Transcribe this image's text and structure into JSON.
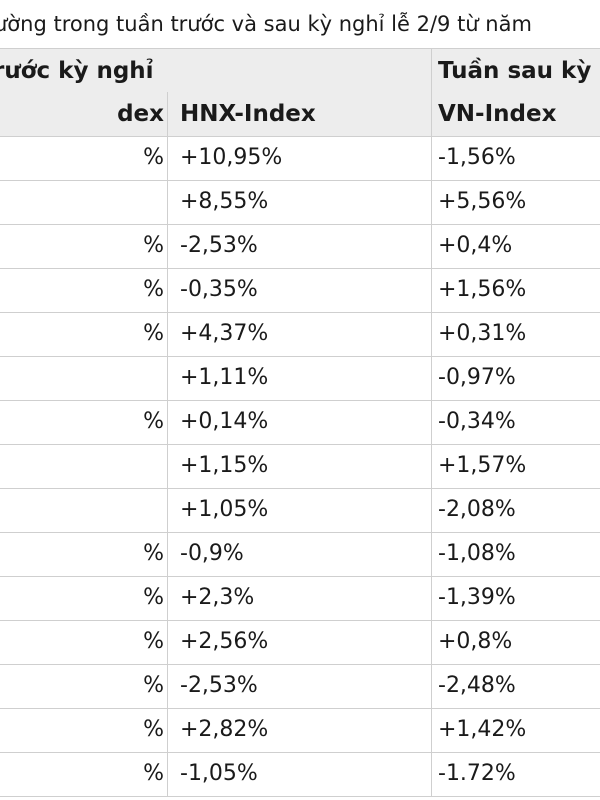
{
  "title": "ường trong tuần trước và sau kỳ nghỉ lễ 2/9 từ năm",
  "header_row_1": {
    "col1": "trước kỳ nghỉ",
    "col3": "Tuần sau kỳ"
  },
  "header_row_2": {
    "col1": "dex",
    "col2": "HNX-Index",
    "col3": "VN-Index"
  },
  "rows": [
    {
      "c1": "%",
      "c2": "+10,95%",
      "c3": "-1,56%"
    },
    {
      "c1": "",
      "c2": "+8,55%",
      "c3": "+5,56%"
    },
    {
      "c1": "%",
      "c2": "-2,53%",
      "c3": "+0,4%"
    },
    {
      "c1": "%",
      "c2": "-0,35%",
      "c3": "+1,56%"
    },
    {
      "c1": "%",
      "c2": "+4,37%",
      "c3": "+0,31%"
    },
    {
      "c1": "",
      "c2": "+1,11%",
      "c3": "-0,97%"
    },
    {
      "c1": "%",
      "c2": "+0,14%",
      "c3": "-0,34%"
    },
    {
      "c1": "",
      "c2": "+1,15%",
      "c3": "+1,57%"
    },
    {
      "c1": "",
      "c2": "+1,05%",
      "c3": "-2,08%"
    },
    {
      "c1": "%",
      "c2": "-0,9%",
      "c3": "-1,08%"
    },
    {
      "c1": "%",
      "c2": "+2,3%",
      "c3": "-1,39%"
    },
    {
      "c1": "%",
      "c2": "+2,56%",
      "c3": "+0,8%"
    },
    {
      "c1": "%",
      "c2": "-2,53%",
      "c3": "-2,48%"
    },
    {
      "c1": "%",
      "c2": "+2,82%",
      "c3": "+1,42%"
    },
    {
      "c1": "%",
      "c2": "-1,05%",
      "c3": "-1.72%"
    }
  ]
}
